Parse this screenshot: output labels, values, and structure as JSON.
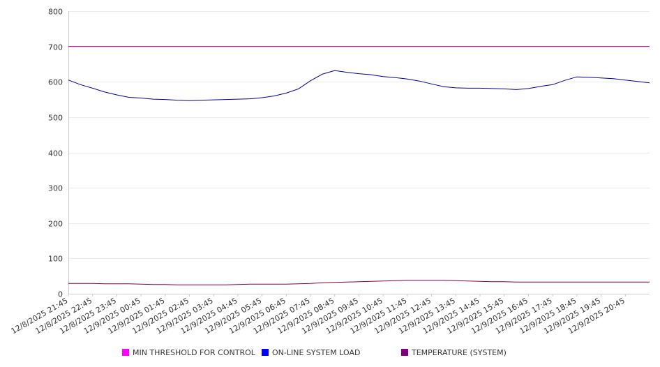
{
  "chart_data": {
    "type": "line",
    "title": "",
    "xlabel": "",
    "ylabel": "",
    "ylim": [
      0,
      800
    ],
    "yticks": [
      0,
      100,
      200,
      300,
      400,
      500,
      600,
      700,
      800
    ],
    "grid": true,
    "legend_position": "bottom",
    "x_tick_labels": [
      "12/8/2025 21:45",
      "12/8/2025 22:45",
      "12/8/2025 23:45",
      "12/9/2025 00:45",
      "12/9/2025 01:45",
      "12/9/2025 02:45",
      "12/9/2025 03:45",
      "12/9/2025 04:45",
      "12/9/2025 05:45",
      "12/9/2025 06:45",
      "12/9/2025 07:45",
      "12/9/2025 08:45",
      "12/9/2025 09:45",
      "12/9/2025 10:45",
      "12/9/2025 11:45",
      "12/9/2025 12:45",
      "12/9/2025 13:45",
      "12/9/2025 14:45",
      "12/9/2025 15:45",
      "12/9/2025 16:45",
      "12/9/2025 17:45",
      "12/9/2025 18:45",
      "12/9/2025 19:45",
      "12/9/2025 20:45"
    ],
    "x_hours": [
      0,
      0.5,
      1,
      1.5,
      2,
      2.5,
      3,
      3.5,
      4,
      4.5,
      5,
      5.5,
      6,
      6.5,
      7,
      7.5,
      8,
      8.5,
      9,
      9.5,
      10,
      10.5,
      11,
      11.5,
      12,
      12.5,
      13,
      13.5,
      14,
      14.5,
      15,
      15.5,
      16,
      16.5,
      17,
      17.5,
      18,
      18.5,
      19,
      19.5,
      20,
      20.5,
      21,
      21.5,
      22,
      22.5,
      23,
      23.5,
      24
    ],
    "x_range_hours": [
      0,
      24
    ],
    "series": [
      {
        "name": "MIN THRESHOLD FOR CONTROL",
        "color": "#ff00ff",
        "line_color": "#cc0099",
        "values": [
          700,
          700,
          700,
          700,
          700,
          700,
          700,
          700,
          700,
          700,
          700,
          700,
          700,
          700,
          700,
          700,
          700,
          700,
          700,
          700,
          700,
          700,
          700,
          700,
          700,
          700,
          700,
          700,
          700,
          700,
          700,
          700,
          700,
          700,
          700,
          700,
          700,
          700,
          700,
          700,
          700,
          700,
          700,
          700,
          700,
          700,
          700,
          700,
          700
        ]
      },
      {
        "name": "ON-LINE SYSTEM LOAD",
        "color": "#0000ff",
        "line_color": "#000099",
        "values": [
          605,
          592,
          582,
          571,
          563,
          556,
          554,
          551,
          550,
          548,
          547,
          548,
          549,
          550,
          551,
          552,
          555,
          560,
          568,
          580,
          603,
          622,
          632,
          627,
          623,
          620,
          615,
          612,
          608,
          602,
          594,
          586,
          583,
          582,
          582,
          581,
          580,
          578,
          581,
          587,
          592,
          604,
          614,
          613,
          611,
          609,
          605,
          601,
          597
        ]
      },
      {
        "name": "TEMPERATURE (SYSTEM)",
        "color": "#800080",
        "line_color": "#800040",
        "values": [
          29,
          29,
          29,
          28,
          28,
          28,
          27,
          26,
          26,
          25,
          25,
          25,
          25,
          25,
          26,
          27,
          27,
          27,
          27,
          28,
          29,
          31,
          32,
          33,
          34,
          35,
          36,
          37,
          38,
          38,
          38,
          38,
          37,
          36,
          35,
          34,
          34,
          33,
          33,
          33,
          33,
          33,
          33,
          33,
          33,
          33,
          33,
          33,
          33
        ]
      }
    ]
  }
}
